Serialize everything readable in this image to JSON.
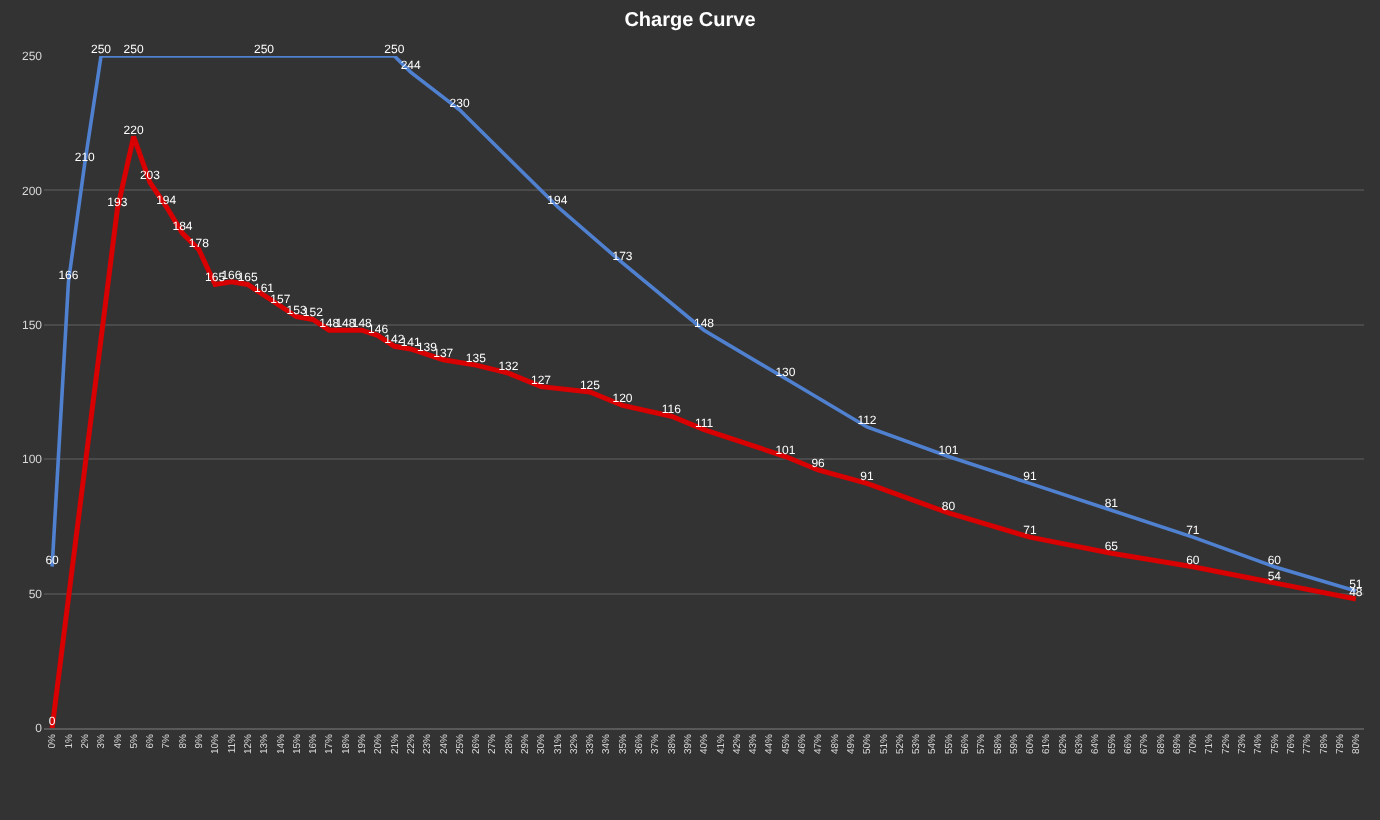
{
  "chart_data": {
    "type": "line",
    "title": "Charge Curve",
    "categories": [
      "0%",
      "1%",
      "2%",
      "3%",
      "4%",
      "5%",
      "6%",
      "7%",
      "8%",
      "9%",
      "10%",
      "11%",
      "12%",
      "13%",
      "14%",
      "15%",
      "16%",
      "17%",
      "18%",
      "19%",
      "20%",
      "21%",
      "22%",
      "23%",
      "24%",
      "25%",
      "26%",
      "27%",
      "28%",
      "29%",
      "30%",
      "31%",
      "32%",
      "33%",
      "34%",
      "35%",
      "36%",
      "37%",
      "38%",
      "39%",
      "40%",
      "41%",
      "42%",
      "43%",
      "44%",
      "45%",
      "46%",
      "47%",
      "48%",
      "49%",
      "50%",
      "51%",
      "52%",
      "53%",
      "54%",
      "55%",
      "56%",
      "57%",
      "58%",
      "59%",
      "60%",
      "61%",
      "62%",
      "63%",
      "64%",
      "65%",
      "66%",
      "67%",
      "68%",
      "69%",
      "70%",
      "71%",
      "72%",
      "73%",
      "74%",
      "75%",
      "76%",
      "77%",
      "78%",
      "79%",
      "80%"
    ],
    "series": [
      {
        "color": "#4f81d0",
        "values": [
          60,
          166,
          210,
          250,
          null,
          250,
          null,
          null,
          null,
          null,
          null,
          null,
          null,
          250,
          null,
          null,
          null,
          null,
          null,
          null,
          null,
          250,
          244,
          null,
          null,
          230,
          null,
          null,
          null,
          null,
          null,
          194,
          null,
          null,
          null,
          173,
          null,
          null,
          null,
          null,
          148,
          null,
          null,
          null,
          null,
          130,
          null,
          null,
          null,
          null,
          112,
          null,
          null,
          null,
          null,
          101,
          null,
          null,
          null,
          null,
          91,
          null,
          null,
          null,
          null,
          81,
          null,
          null,
          null,
          null,
          71,
          null,
          null,
          null,
          null,
          60,
          null,
          null,
          null,
          null,
          51
        ]
      },
      {
        "color": "#d80000",
        "values": [
          0,
          null,
          null,
          null,
          193,
          220,
          203,
          194,
          184,
          178,
          165,
          166,
          165,
          161,
          157,
          153,
          152,
          148,
          148,
          148,
          146,
          142,
          141,
          139,
          137,
          null,
          135,
          null,
          132,
          null,
          127,
          null,
          null,
          125,
          null,
          120,
          null,
          null,
          116,
          null,
          111,
          null,
          null,
          null,
          null,
          101,
          null,
          96,
          null,
          null,
          91,
          null,
          null,
          null,
          null,
          80,
          null,
          null,
          null,
          null,
          71,
          null,
          null,
          null,
          null,
          65,
          null,
          null,
          null,
          null,
          60,
          null,
          null,
          null,
          null,
          54,
          null,
          null,
          null,
          null,
          48
        ]
      }
    ],
    "ylim": [
      0,
      250
    ],
    "yticks": [
      0,
      50,
      100,
      150,
      200,
      250
    ],
    "grid": "y",
    "data_labels": true,
    "marker": "none",
    "line_style": "solid",
    "legend": false
  }
}
